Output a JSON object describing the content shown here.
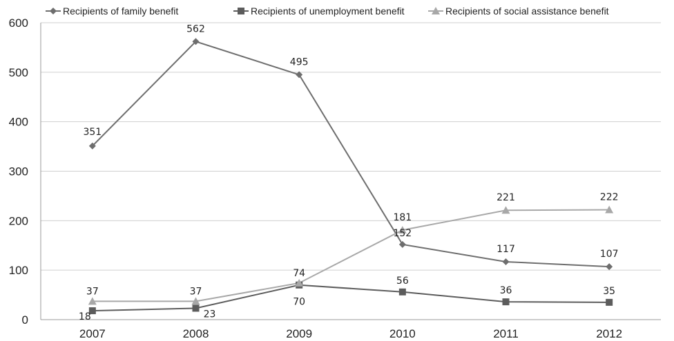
{
  "chart_data": {
    "type": "line",
    "title": "",
    "xlabel": "",
    "ylabel": "",
    "categories": [
      "2007",
      "2008",
      "2009",
      "2010",
      "2011",
      "2012"
    ],
    "ylim": [
      0,
      600
    ],
    "yticks": [
      "0",
      "100",
      "200",
      "300",
      "400",
      "500",
      "600"
    ],
    "grid": "horizontal",
    "legend_position": "top",
    "series": [
      {
        "name": "Recipients of family benefit",
        "values": [
          351,
          562,
          495,
          152,
          117,
          107
        ],
        "labels": [
          "351",
          "562",
          "495",
          "152",
          "117",
          "107"
        ],
        "marker": "diamond",
        "color": "#6e6e6e"
      },
      {
        "name": "Recipients of unemployment benefit",
        "values": [
          18,
          23,
          70,
          56,
          36,
          35
        ],
        "labels": [
          "18",
          "23",
          "70",
          "56",
          "36",
          "35"
        ],
        "marker": "square",
        "color": "#5c5c5c"
      },
      {
        "name": "Recipients of social assistance benefit",
        "values": [
          37,
          37,
          74,
          181,
          221,
          222
        ],
        "labels": [
          "37",
          "37",
          "74",
          "181",
          "221",
          "222"
        ],
        "marker": "triangle",
        "color": "#a8a8a8"
      }
    ]
  }
}
